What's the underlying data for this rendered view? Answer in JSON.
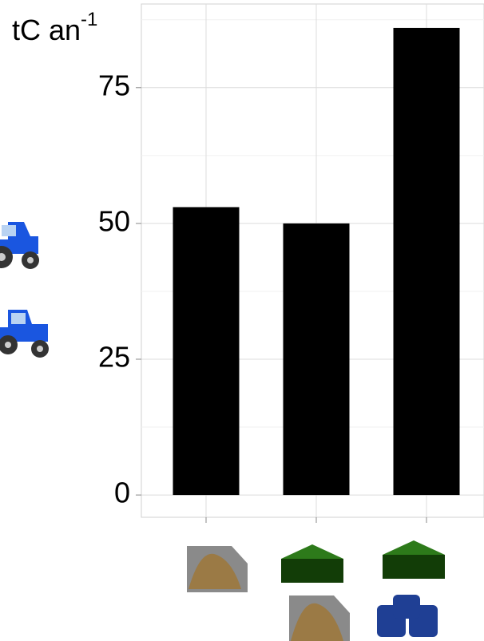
{
  "chart_data": {
    "type": "bar",
    "y_label": {
      "text": "tC an",
      "superscript": "-1"
    },
    "categories": [
      null,
      null,
      null
    ],
    "values": [
      53,
      50,
      86
    ],
    "color": "#000000",
    "ylim": [
      -4.1,
      90.4
    ],
    "yticks": [
      0,
      25,
      50,
      75
    ],
    "yminor": [
      12.5,
      37.5,
      62.5,
      87.5
    ],
    "grid": true
  }
}
